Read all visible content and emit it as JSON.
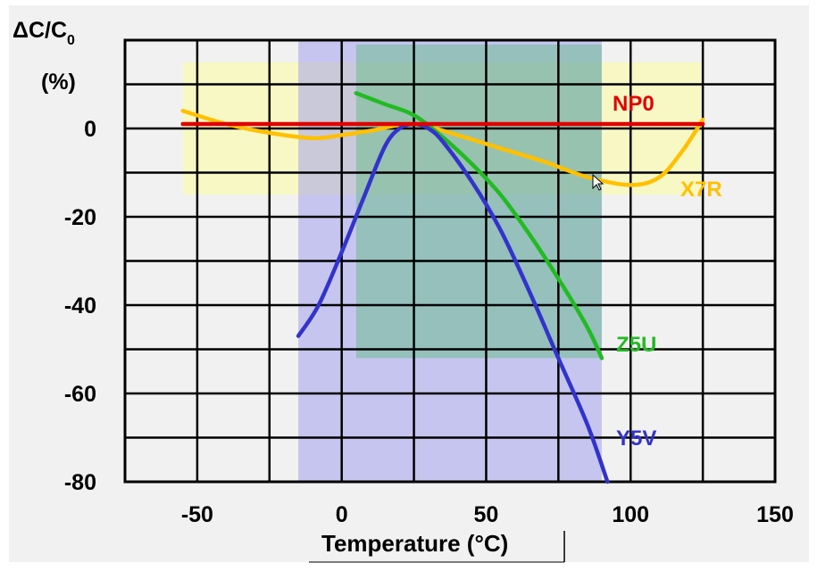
{
  "chart_data": {
    "type": "line",
    "ylabel_main": "ΔC/C",
    "ylabel_sub": "0",
    "ylabel_unit": "(%)",
    "xlabel": "Temperature (°C)",
    "xlim": [
      -75,
      150
    ],
    "ylim": [
      -80,
      20
    ],
    "xticks": [
      "-50",
      "0",
      "50",
      "100",
      "150"
    ],
    "yticks": [
      "0",
      "-20",
      "-40",
      "-60",
      "-80"
    ],
    "grid": true,
    "regions": [
      {
        "name": "X7R",
        "x": [
          -55,
          125
        ],
        "y": [
          -15,
          15
        ],
        "color": "#ffff99"
      },
      {
        "name": "Y5V",
        "x": [
          -15,
          90
        ],
        "y": [
          -82,
          20
        ],
        "color": "#9999ee"
      },
      {
        "name": "Z5U",
        "x": [
          5,
          90
        ],
        "y": [
          -52,
          19
        ],
        "color": "#66bb88"
      }
    ],
    "series": [
      {
        "name": "NP0",
        "color": "#e00000",
        "points": [
          [
            -55,
            1
          ],
          [
            0,
            1
          ],
          [
            50,
            1
          ],
          [
            100,
            1
          ],
          [
            125,
            1
          ]
        ]
      },
      {
        "name": "X7R",
        "color": "#ffc000",
        "points": [
          [
            -55,
            4
          ],
          [
            -40,
            1
          ],
          [
            -25,
            -1
          ],
          [
            -10,
            -2.2
          ],
          [
            0,
            -1.5
          ],
          [
            10,
            -0.5
          ],
          [
            25,
            1
          ],
          [
            40,
            -1.5
          ],
          [
            55,
            -4.5
          ],
          [
            70,
            -7.5
          ],
          [
            85,
            -11
          ],
          [
            100,
            -12.8
          ],
          [
            110,
            -11
          ],
          [
            118,
            -5
          ],
          [
            125,
            2
          ]
        ]
      },
      {
        "name": "Z5U",
        "color": "#22bb22",
        "points": [
          [
            5,
            8
          ],
          [
            15,
            5.5
          ],
          [
            25,
            3
          ],
          [
            35,
            -2
          ],
          [
            45,
            -8
          ],
          [
            55,
            -15
          ],
          [
            65,
            -24
          ],
          [
            75,
            -34
          ],
          [
            85,
            -45
          ],
          [
            90,
            -52
          ]
        ]
      },
      {
        "name": "Y5V",
        "color": "#3333cc",
        "points": [
          [
            -15,
            -47
          ],
          [
            -8,
            -40
          ],
          [
            0,
            -28
          ],
          [
            8,
            -15
          ],
          [
            15,
            -4
          ],
          [
            20,
            0
          ],
          [
            25,
            1
          ],
          [
            30,
            0
          ],
          [
            35,
            -3
          ],
          [
            45,
            -12
          ],
          [
            55,
            -23
          ],
          [
            65,
            -37
          ],
          [
            75,
            -52
          ],
          [
            85,
            -67
          ],
          [
            92,
            -80
          ]
        ]
      }
    ],
    "series_labels": [
      {
        "text": "NP0",
        "color": "#e00000"
      },
      {
        "text": "X7R",
        "color": "#ffc000"
      },
      {
        "text": "Z5U",
        "color": "#22bb22"
      },
      {
        "text": "Y5V",
        "color": "#3333cc"
      }
    ]
  }
}
